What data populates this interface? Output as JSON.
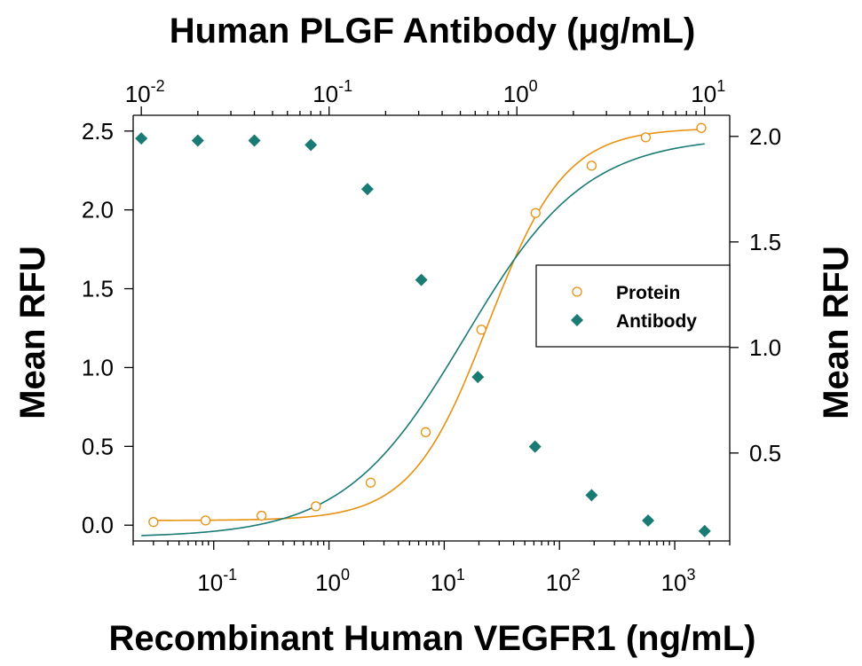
{
  "chart_data": {
    "type": "scatter",
    "title": "Human PLGF Antibody (µg/mL)",
    "xlabel": "Recombinant Human VEGFR1 (ng/mL)",
    "ylabel_left": "Mean RFU",
    "ylabel_right": "Mean RFU",
    "x_scale": "log",
    "xlim": [
      0.02,
      3000
    ],
    "ylim_left": [
      -0.1,
      2.6
    ],
    "ylim_right": [
      0.0833,
      2.1
    ],
    "x2_scale": "log",
    "x2lim": [
      0.00905,
      13.6
    ],
    "x_ticks": [
      {
        "base": "10",
        "exp": "-1",
        "value": 0.1
      },
      {
        "base": "10",
        "exp": "0",
        "value": 1
      },
      {
        "base": "10",
        "exp": "1",
        "value": 10
      },
      {
        "base": "10",
        "exp": "2",
        "value": 100
      },
      {
        "base": "10",
        "exp": "3",
        "value": 1000
      }
    ],
    "x2_ticks": [
      {
        "base": "10",
        "exp": "-2",
        "value": 0.01
      },
      {
        "base": "10",
        "exp": "-1",
        "value": 0.1
      },
      {
        "base": "10",
        "exp": "0",
        "value": 1
      },
      {
        "base": "10",
        "exp": "1",
        "value": 10
      }
    ],
    "y_left_ticks": [
      {
        "label": "0.0",
        "value": 0.0
      },
      {
        "label": "0.5",
        "value": 0.5
      },
      {
        "label": "1.0",
        "value": 1.0
      },
      {
        "label": "1.5",
        "value": 1.5
      },
      {
        "label": "2.0",
        "value": 2.0
      },
      {
        "label": "2.5",
        "value": 2.5
      }
    ],
    "y_right_ticks": [
      {
        "label": "0.5",
        "value": 0.5
      },
      {
        "label": "1.0",
        "value": 1.0
      },
      {
        "label": "1.5",
        "value": 1.5
      },
      {
        "label": "2.0",
        "value": 2.0
      }
    ],
    "legend": {
      "placement": "right",
      "entries": [
        "Protein",
        "Antibody"
      ]
    },
    "grid": false,
    "series": [
      {
        "name": "Protein",
        "axis": "bottom-left",
        "marker": "open-circle",
        "color": "#E8900F",
        "x": [
          0.03,
          0.085,
          0.26,
          0.77,
          2.3,
          6.9,
          21,
          62,
          190,
          560,
          1700
        ],
        "y": [
          0.02,
          0.03,
          0.06,
          0.12,
          0.27,
          0.59,
          1.24,
          1.98,
          2.28,
          2.46,
          2.52
        ]
      },
      {
        "name": "Antibody",
        "axis": "top-right",
        "marker": "filled-diamond",
        "color": "#1A7A74",
        "x": [
          0.01,
          0.02,
          0.04,
          0.08,
          0.16,
          0.31,
          0.62,
          1.25,
          2.5,
          5.0,
          10.0
        ],
        "y": [
          1.99,
          1.98,
          1.98,
          1.96,
          1.75,
          1.32,
          0.86,
          0.53,
          0.3,
          0.18,
          0.13
        ]
      }
    ]
  }
}
